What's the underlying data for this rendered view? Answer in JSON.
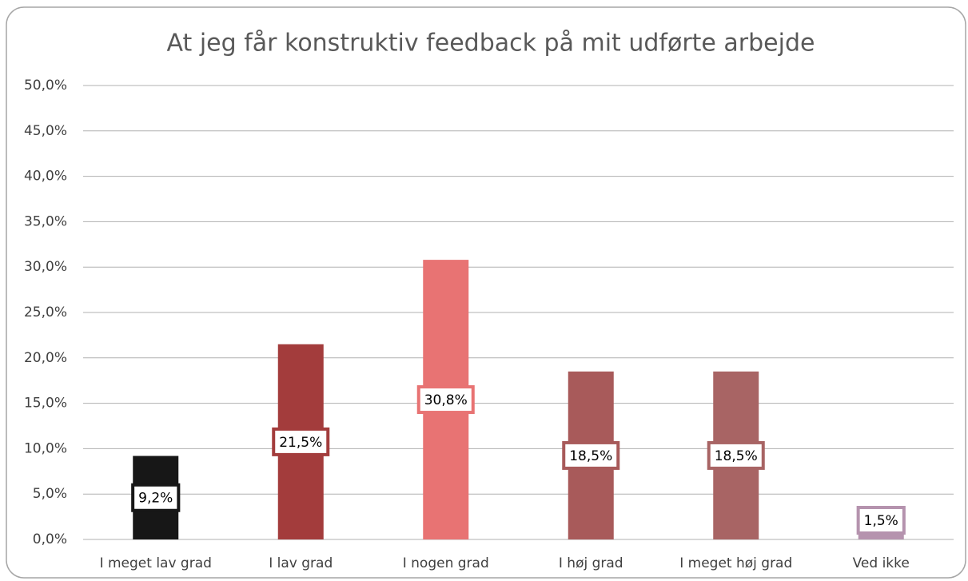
{
  "chart_data": {
    "type": "bar",
    "title": "At jeg får konstruktiv feedback på mit udførte arbejde",
    "categories": [
      "I meget lav grad",
      "I lav grad",
      "I nogen grad",
      "I høj grad",
      "I meget høj grad",
      "Ved ikke"
    ],
    "values": [
      9.2,
      21.5,
      30.8,
      18.5,
      18.5,
      1.5
    ],
    "value_labels": [
      "9,2%",
      "21,5%",
      "30,8%",
      "18,5%",
      "18,5%",
      "1,5%"
    ],
    "colors": [
      "#171717",
      "#a33c3c",
      "#e87373",
      "#a85a5a",
      "#a86464",
      "#b593ae"
    ],
    "ylim": [
      0,
      50
    ],
    "yticks": [
      {
        "value": 0,
        "label": "0,0%"
      },
      {
        "value": 5,
        "label": "5,0%"
      },
      {
        "value": 10,
        "label": "10,0%"
      },
      {
        "value": 15,
        "label": "15,0%"
      },
      {
        "value": 20,
        "label": "20,0%"
      },
      {
        "value": 25,
        "label": "25,0%"
      },
      {
        "value": 30,
        "label": "30,0%"
      },
      {
        "value": 35,
        "label": "35,0%"
      },
      {
        "value": 40,
        "label": "40,0%"
      },
      {
        "value": 45,
        "label": "45,0%"
      },
      {
        "value": 50,
        "label": "50,0%"
      }
    ],
    "grid": true
  }
}
